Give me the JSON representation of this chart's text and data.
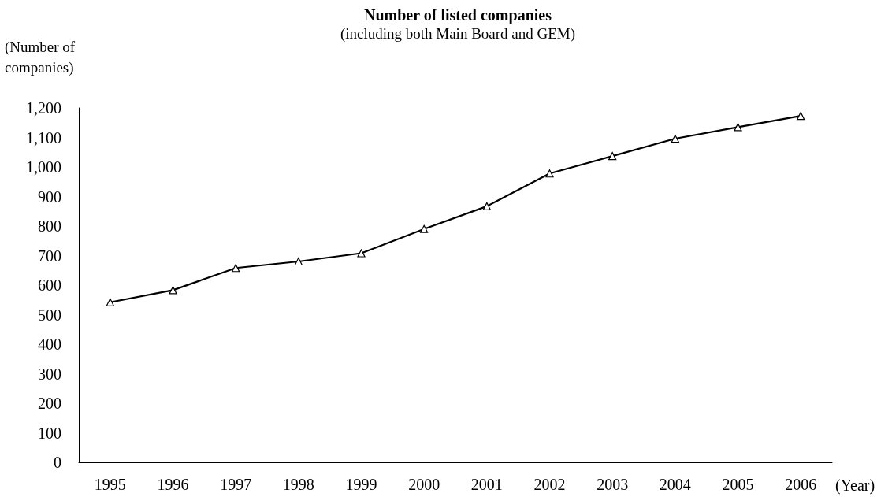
{
  "chart_data": {
    "type": "line",
    "title": "Number of listed companies",
    "subtitle": "(including both Main Board and GEM)",
    "ylabel": "(Number of\ncompanies)",
    "xlabel": "(Year)",
    "categories": [
      "1995",
      "1996",
      "1997",
      "1998",
      "1999",
      "2000",
      "2001",
      "2002",
      "2003",
      "2004",
      "2005",
      "2006"
    ],
    "series": [
      {
        "color": "#000000",
        "values": [
          542,
          583,
          658,
          680,
          708,
          790,
          867,
          978,
          1037,
          1096,
          1135,
          1173
        ]
      }
    ],
    "ylim": [
      0,
      1200
    ],
    "yticks": [
      0,
      100,
      200,
      300,
      400,
      500,
      600,
      700,
      800,
      900,
      {
        "value": 1000,
        "label": "1,000"
      },
      {
        "value": 1100,
        "label": "1,100"
      },
      {
        "value": 1200,
        "label": "1,200"
      }
    ],
    "grid": false,
    "marker": "triangle",
    "line_style": "solid"
  }
}
